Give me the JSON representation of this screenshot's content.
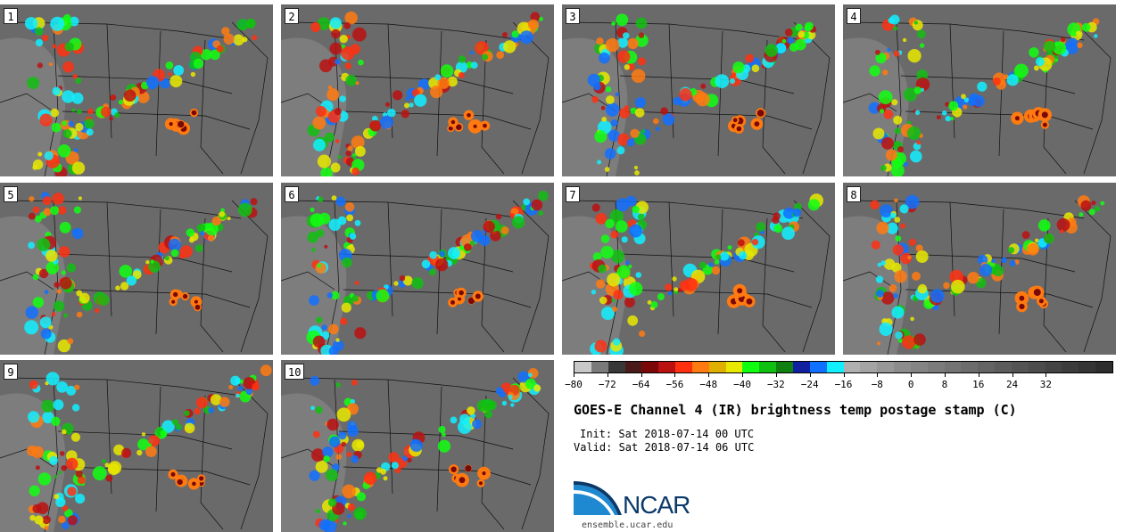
{
  "panels": [
    {
      "label": "1"
    },
    {
      "label": "2"
    },
    {
      "label": "3"
    },
    {
      "label": "4"
    },
    {
      "label": "5"
    },
    {
      "label": "6"
    },
    {
      "label": "7"
    },
    {
      "label": "8"
    },
    {
      "label": "9"
    },
    {
      "label": "10"
    }
  ],
  "colorbar": {
    "colors": [
      "#c8c8c8",
      "#7a7a7a",
      "#383838",
      "#4a1a1a",
      "#7a0808",
      "#bb1010",
      "#ff3010",
      "#ff7a10",
      "#e0b000",
      "#e8e800",
      "#10ff10",
      "#10c010",
      "#108010",
      "#1020a0",
      "#1070ff",
      "#10f0ff",
      "#b0b0b0",
      "#a4a4a4",
      "#989898",
      "#8c8c8c",
      "#848484",
      "#7c7c7c",
      "#747474",
      "#6c6c6c",
      "#646464",
      "#5c5c5c",
      "#545454",
      "#4c4c4c",
      "#444444",
      "#3c3c3c",
      "#343434",
      "#2c2c2c"
    ],
    "ticks": [
      "−80",
      "−72",
      "−64",
      "−56",
      "−48",
      "−40",
      "−32",
      "−24",
      "−16",
      "−8",
      "0",
      "8",
      "16",
      "24",
      "32"
    ]
  },
  "title": "GOES-E Channel 4 (IR) brightness temp postage stamp (C)",
  "init_line": "Init: Sat 2018-07-14 00 UTC",
  "valid_line": "Valid: Sat 2018-07-14 06 UTC",
  "logo": {
    "text": "NCAR",
    "site": "ensemble.ucar.edu"
  }
}
